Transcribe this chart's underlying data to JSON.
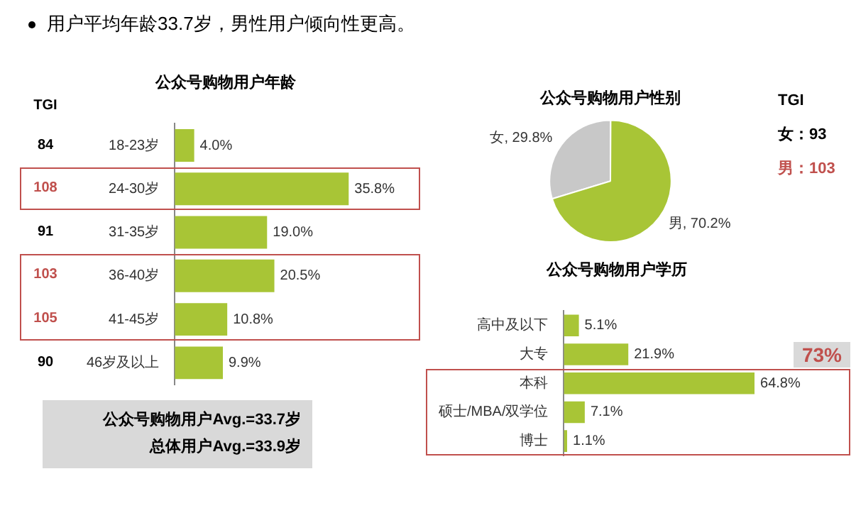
{
  "chart_data": [
    {
      "type": "other",
      "title": "用户平均年龄33.7岁，男性用户倾向性更高。"
    },
    {
      "type": "bar",
      "orientation": "horizontal",
      "title": "公众号购物用户年龄",
      "categories": [
        "18-23岁",
        "24-30岁",
        "31-35岁",
        "36-40岁",
        "41-45岁",
        "46岁及以上"
      ],
      "values": [
        4.0,
        35.8,
        19.0,
        20.5,
        10.8,
        9.9
      ],
      "value_labels": [
        "4.0%",
        "35.8%",
        "19.0%",
        "20.5%",
        "10.8%",
        "9.9%"
      ],
      "color": "#a8c536",
      "grid": false,
      "legend": false,
      "tick_labels": "y",
      "annotations": [
        "TGI",
        "84",
        "108",
        "91",
        "103",
        "105",
        "90",
        "公众号购物用户Avg.=33.7岁",
        "总体用户Avg.=33.9岁"
      ]
    },
    {
      "type": "pie",
      "title": "公众号购物用户性别",
      "categories": [
        "女",
        "男"
      ],
      "values": [
        29.8,
        70.2
      ],
      "colors": [
        "#c8c8c8",
        "#a8c536"
      ],
      "value_labels": [
        "29.8%",
        "70.2%"
      ],
      "legend": false,
      "annotations": [
        "TGI",
        "女：93",
        "男：103"
      ]
    },
    {
      "type": "bar",
      "orientation": "horizontal",
      "title": "公众号购物用户学历",
      "categories": [
        "高中及以下",
        "大专",
        "本科",
        "硕士/MBA/双学位",
        "博士"
      ],
      "values": [
        5.1,
        21.9,
        64.8,
        7.1,
        1.1
      ],
      "value_labels": [
        "5.1%",
        "21.9%",
        "64.8%",
        "7.1%",
        "1.1%"
      ],
      "color": "#a8c536",
      "grid": false,
      "legend": false,
      "tick_labels": "y",
      "annotations": [
        "73%"
      ]
    }
  ]
}
